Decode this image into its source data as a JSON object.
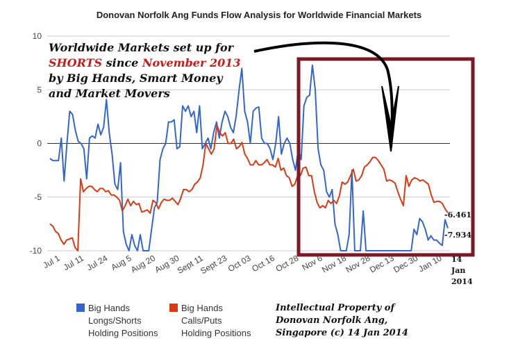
{
  "chart_data": {
    "type": "line",
    "title": "Donovan Norfolk Ang Funds Flow Analysis for Worldwide Financial Markets",
    "ylim": [
      -10,
      10
    ],
    "yticks": [
      "10",
      "5",
      "0",
      "-5",
      "-10"
    ],
    "xticks": [
      "Jul 1",
      "Jul 11",
      "Jul 24",
      "Aug 5",
      "Aug 20",
      "Aug 30",
      "Sept 11",
      "Sept 23",
      "Oct 03",
      "Oct 16",
      "Oct 28",
      "Nov 6",
      "Nov 18",
      "Nov 28",
      "Dec 13",
      "Dec 30",
      "Jan 10"
    ],
    "grid": true,
    "series": [
      {
        "name": "Big Hands Longs/Shorts Holding Positions",
        "color": "#3366cc",
        "values": [
          -1.4,
          -1.6,
          -1.6,
          -1.6,
          0.5,
          -3.5,
          0,
          3,
          2.7,
          1.2,
          0.2,
          0,
          -0.5,
          -3.3,
          0.5,
          0.7,
          0.5,
          1.8,
          0.8,
          1.5,
          4.1,
          1,
          -1,
          -3.8,
          -4.3,
          -1.8,
          -8.2,
          -9.4,
          -10,
          -8.5,
          -9.5,
          -10,
          -8.5,
          -10,
          -10,
          -10,
          -8,
          -6,
          -5.5,
          -1.5,
          -0.5,
          0,
          2,
          2,
          2.2,
          -0.5,
          -0.3,
          3.5,
          3,
          3.5,
          2.5,
          3,
          1,
          3.5,
          -0.5,
          0,
          0.5,
          -0.5,
          1,
          2,
          0.5,
          2,
          3,
          2.5,
          1.5,
          1,
          2.6,
          5,
          7,
          3,
          2,
          0,
          3,
          3.3,
          3.4,
          0.5,
          0,
          0,
          -0.5,
          -1.5,
          0,
          2.5,
          -1,
          0,
          0.5,
          0,
          -1.5,
          -2.5,
          -0.5,
          -1.5,
          3.5,
          4.3,
          4.5,
          7.3,
          5,
          -0.5,
          -2,
          -2.5,
          -4.5,
          -5,
          -4.3,
          -7.5,
          -8.5,
          -10,
          -10,
          -10,
          -8.5,
          -2.5,
          -10,
          -10,
          -10,
          -6.3,
          -10,
          -10,
          -10,
          -10,
          -10,
          -10,
          -10,
          -10,
          -10,
          -10,
          -10,
          -10,
          -10,
          -10,
          -10,
          -10,
          -10,
          -8,
          -8.5,
          -7,
          -7.3,
          -8,
          -9,
          -8.6,
          -9,
          -9,
          -9.3,
          -9.5,
          -7.1,
          -7.9
        ],
        "end_label": "-7.934"
      },
      {
        "name": "Big Hands Calls/Puts Holding Positions",
        "color": "#dc3912",
        "values": [
          -7.5,
          -7.7,
          -8.2,
          -8.4,
          -9,
          -9.4,
          -9,
          -8.9,
          -8.8,
          -9.7,
          -10,
          -3.3,
          -4.5,
          -4.2,
          -4,
          -4,
          -4.3,
          -4.5,
          -4.2,
          -4.2,
          -4.5,
          -4.4,
          -4.8,
          -4.8,
          -5,
          -5.3,
          -6.3,
          -5.8,
          -5.2,
          -5.8,
          -5.4,
          -5.7,
          -5.6,
          -6.4,
          -6.3,
          -6.2,
          -6.5,
          -5.3,
          -5.5,
          -6.1,
          -5.5,
          -5.2,
          -5.3,
          -5.3,
          -5.1,
          -5.4,
          -5.7,
          -5.1,
          -4.3,
          -4.3,
          -4.5,
          -4.3,
          -3.8,
          -3.6,
          -3.2,
          -2,
          0,
          -0.5,
          -1,
          -0.5,
          1.7,
          1,
          0.7,
          1,
          0,
          0,
          0.4,
          -0.5,
          -0.3,
          0.1,
          -1,
          -1.4,
          -2,
          -2,
          -1.6,
          -2,
          -2,
          -1.8,
          -1.5,
          -2,
          -2,
          -2.2,
          -1.4,
          -2.5,
          -2.3,
          -3,
          -3.2,
          -4,
          -3.8,
          -3,
          -3,
          -2.3,
          -2.2,
          -3,
          -3,
          -4.5,
          -5.5,
          -6,
          -5.8,
          -6,
          -5.3,
          -5.6,
          -5.3,
          -5.6,
          -4.9,
          -3.6,
          -3.8,
          -3.6,
          -3,
          -2.4,
          -3.5,
          -3.4,
          -3,
          -2.2,
          -2,
          -1.7,
          -1.3,
          -1.3,
          -1.6,
          -2,
          -2.4,
          -3.5,
          -3.4,
          -3.5,
          -3.7,
          -4.5,
          -5.2,
          -5.8,
          -3,
          -4,
          -3.4,
          -3.2,
          -3.3,
          -3.5,
          -3.4,
          -3.6,
          -3.8,
          -4.8,
          -5.5,
          -5.4,
          -5.4,
          -5.6,
          -6.1,
          -6.461
        ],
        "end_label": "-6.461"
      }
    ],
    "end_date_label": [
      "14",
      "Jan",
      "2014"
    ],
    "annotation": {
      "line1": "Worldwide Markets set up for",
      "line2_a": "SHORTS",
      "line2_b": " since ",
      "line2_c": "November 2013",
      "line3": "by Big Hands, Smart Money",
      "line4": "and Market Movers"
    },
    "highlight_box_color": "#7b1a24",
    "copyright": [
      "Intellectual Property of",
      "Donovan Norfolk Ang,",
      "Singapore (c) 14 Jan 2014"
    ],
    "legend": [
      {
        "lines": [
          "Big Hands",
          "Longs/Shorts",
          "Holding Positions"
        ],
        "color": "#3366cc"
      },
      {
        "lines": [
          "Big Hands",
          "Calls/Puts",
          "Holding Positions"
        ],
        "color": "#dc3912"
      }
    ]
  }
}
